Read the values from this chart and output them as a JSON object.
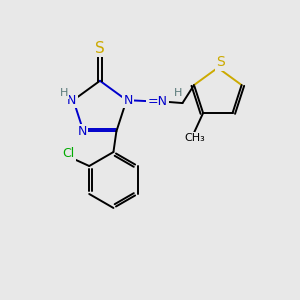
{
  "background_color": "#e8e8e8",
  "atom_colors": {
    "C": "#000000",
    "N": "#0000cc",
    "S": "#ccaa00",
    "H": "#5a7a7a",
    "Cl": "#00aa00"
  },
  "figsize": [
    3.0,
    3.0
  ],
  "dpi": 100
}
